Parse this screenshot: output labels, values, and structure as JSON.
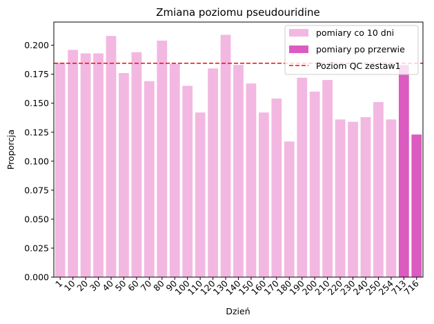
{
  "chart_data": {
    "type": "bar",
    "title": "Zmiana poziomu pseudouridine",
    "xlabel": "Dzień",
    "ylabel": "Proporcja",
    "ylim": [
      0,
      0.22
    ],
    "yticks": [
      "0.000",
      "0.025",
      "0.050",
      "0.075",
      "0.100",
      "0.125",
      "0.150",
      "0.175",
      "0.200"
    ],
    "categories": [
      "1",
      "10",
      "20",
      "30",
      "40",
      "50",
      "60",
      "70",
      "80",
      "90",
      "100",
      "110",
      "120",
      "130",
      "140",
      "150",
      "160",
      "170",
      "180",
      "190",
      "200",
      "210",
      "220",
      "230",
      "240",
      "250",
      "254",
      "713",
      "716"
    ],
    "values": [
      0.185,
      0.196,
      0.193,
      0.193,
      0.208,
      0.176,
      0.194,
      0.169,
      0.204,
      0.184,
      0.165,
      0.142,
      0.18,
      0.209,
      0.183,
      0.167,
      0.142,
      0.154,
      0.117,
      0.172,
      0.16,
      0.17,
      0.136,
      0.134,
      0.138,
      0.151,
      0.136,
      0.183,
      0.123
    ],
    "series": [
      {
        "name": "pomiary co 10 dni",
        "color": "#f2b8e1",
        "categories": [
          "1",
          "10",
          "20",
          "30",
          "40",
          "50",
          "60",
          "70",
          "80",
          "90",
          "100",
          "110",
          "120",
          "130",
          "140",
          "150",
          "160",
          "170",
          "180",
          "190",
          "200",
          "210",
          "220",
          "230",
          "240",
          "250",
          "254"
        ]
      },
      {
        "name": "pomiary po przerwie",
        "color": "#db5bc0",
        "categories": [
          "713",
          "716"
        ]
      }
    ],
    "reference_line": {
      "name": "Poziom QC zestaw1",
      "value": 0.1845,
      "color": "#ff0000",
      "style": "dashed"
    },
    "legend_position": "top-right",
    "grid": false
  }
}
